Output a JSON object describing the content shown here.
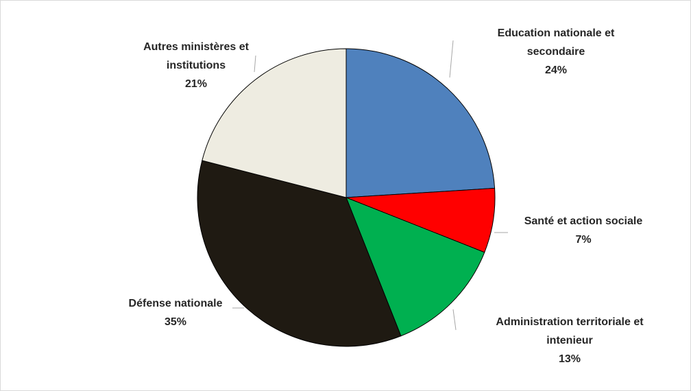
{
  "chart_data": {
    "type": "pie",
    "categories": [
      "Education nationale et secondaire",
      "Santé et action sociale",
      "Administration territoriale et intenieur",
      "Défense nationale",
      "Autres ministères et institutions"
    ],
    "values": [
      24,
      7,
      13,
      35,
      21
    ],
    "value_labels": [
      "24%",
      "7%",
      "13%",
      "35%",
      "21%"
    ],
    "colors": [
      "#4f81bd",
      "#ff0000",
      "#00b050",
      "#1f1a12",
      "#eeece1"
    ]
  }
}
